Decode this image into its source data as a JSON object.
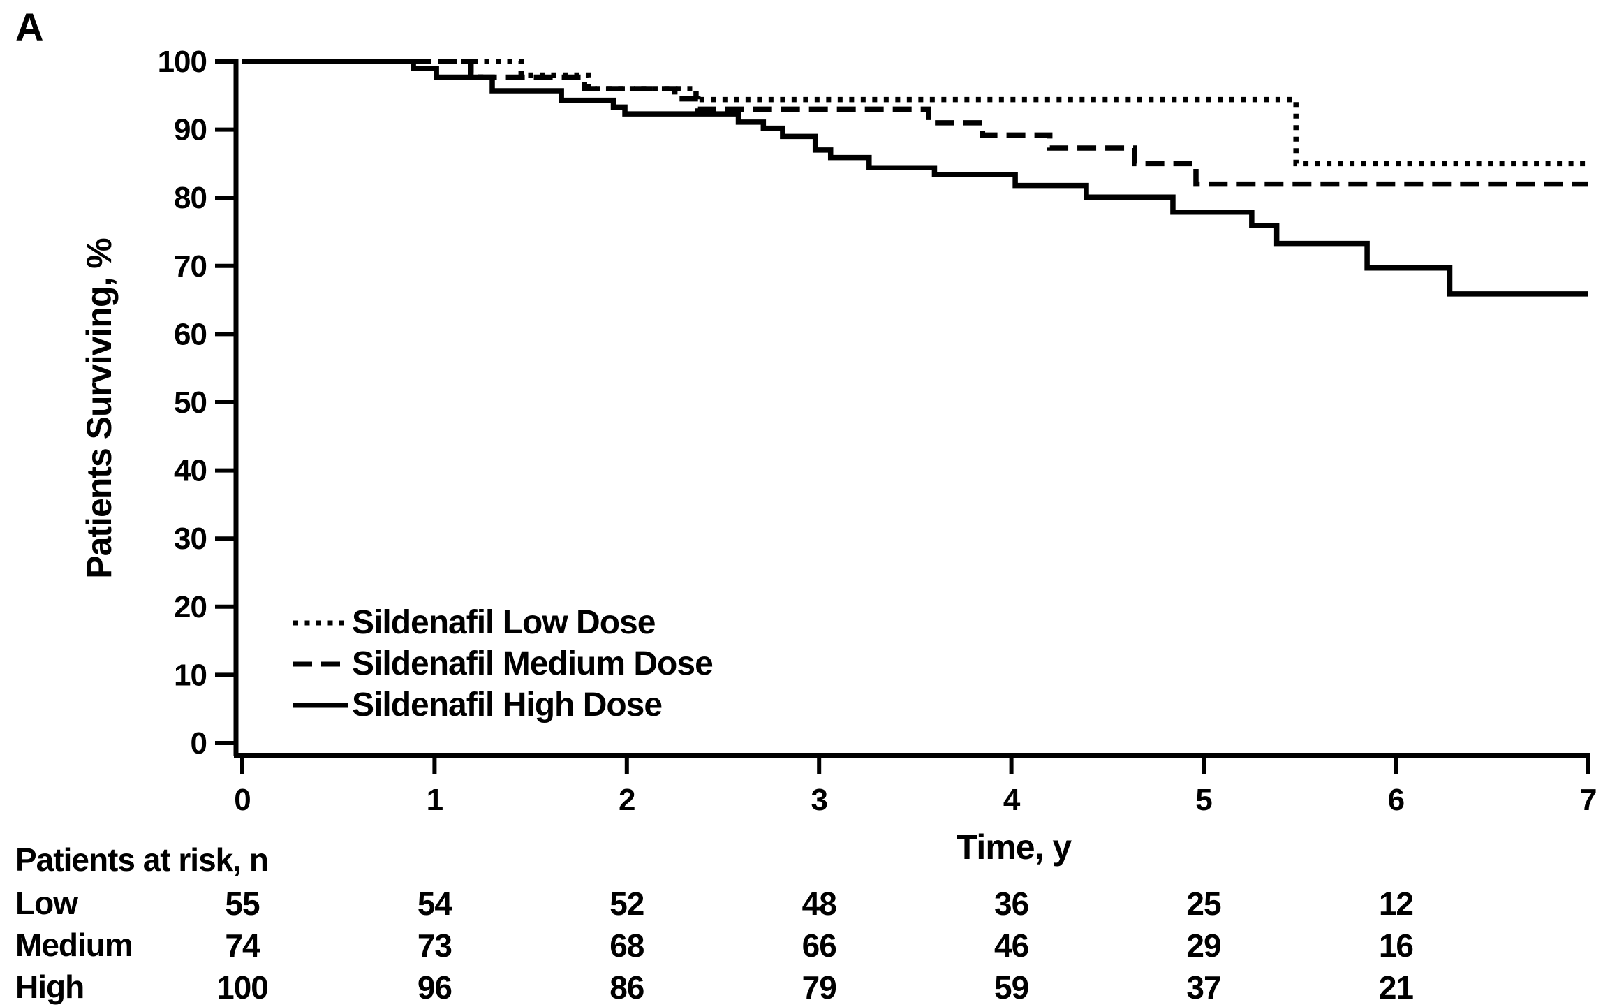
{
  "panel_label": "A",
  "colors": {
    "foreground": "#000000",
    "background": "#ffffff"
  },
  "axes": {
    "y": {
      "title": "Patients Surviving, %",
      "ticks": [
        100,
        90,
        80,
        70,
        60,
        50,
        40,
        30,
        20,
        10,
        0
      ]
    },
    "x": {
      "title": "Time, y",
      "ticks": [
        0,
        1,
        2,
        3,
        4,
        5,
        6,
        7
      ]
    }
  },
  "legend": [
    {
      "label": "Sildenafil Low Dose",
      "style": "dotted"
    },
    {
      "label": "Sildenafil Medium Dose",
      "style": "dashed"
    },
    {
      "label": "Sildenafil High Dose",
      "style": "solid"
    }
  ],
  "chart_data": {
    "type": "line",
    "subtype": "kaplan-meier-step",
    "title": "",
    "xlabel": "Time, y",
    "ylabel": "Patients Surviving, %",
    "xlim": [
      0,
      7
    ],
    "ylim": [
      0,
      100
    ],
    "grid": false,
    "legend_position": "lower-left-inside",
    "series": [
      {
        "name": "Sildenafil Low Dose",
        "line_style": "dotted",
        "start": [
          0,
          100
        ],
        "drops": [
          [
            1.45,
            98
          ],
          [
            1.8,
            96
          ],
          [
            2.36,
            94.4
          ],
          [
            5.48,
            85
          ]
        ],
        "end_t": 7,
        "final_value": 85
      },
      {
        "name": "Sildenafil Medium Dose",
        "line_style": "dashed",
        "start": [
          0,
          100
        ],
        "drops": [
          [
            1.19,
            98.4
          ],
          [
            1.24,
            97.7
          ],
          [
            1.78,
            96
          ],
          [
            2.25,
            94.5
          ],
          [
            2.37,
            93
          ],
          [
            3.57,
            91
          ],
          [
            3.85,
            89.2
          ],
          [
            4.2,
            87.3
          ],
          [
            4.64,
            85
          ],
          [
            4.96,
            82
          ]
        ],
        "end_t": 7,
        "final_value": 82
      },
      {
        "name": "Sildenafil High Dose",
        "line_style": "solid",
        "start": [
          0,
          100
        ],
        "drops": [
          [
            0.89,
            99
          ],
          [
            1.01,
            97.7
          ],
          [
            1.3,
            95.7
          ],
          [
            1.66,
            94.3
          ],
          [
            1.93,
            93.3
          ],
          [
            1.99,
            92.3
          ],
          [
            2.58,
            91.1
          ],
          [
            2.71,
            90.2
          ],
          [
            2.81,
            89
          ],
          [
            2.98,
            87
          ],
          [
            3.06,
            85.9
          ],
          [
            3.26,
            84.4
          ],
          [
            3.6,
            83.4
          ],
          [
            4.02,
            81.8
          ],
          [
            4.39,
            80.1
          ],
          [
            4.84,
            77.9
          ],
          [
            5.25,
            75.9
          ],
          [
            5.38,
            73.3
          ],
          [
            5.85,
            69.7
          ],
          [
            6.28,
            65.9
          ]
        ],
        "end_t": 7,
        "final_value": 66
      }
    ]
  },
  "risk_table": {
    "title": "Patients at risk, n",
    "time_points": [
      0,
      1,
      2,
      3,
      4,
      5,
      6
    ],
    "rows": [
      {
        "label": "Low",
        "values": [
          55,
          54,
          52,
          48,
          36,
          25,
          12
        ]
      },
      {
        "label": "Medium",
        "values": [
          74,
          73,
          68,
          66,
          46,
          29,
          16
        ]
      },
      {
        "label": "High",
        "values": [
          100,
          96,
          86,
          79,
          59,
          37,
          21
        ]
      }
    ]
  }
}
